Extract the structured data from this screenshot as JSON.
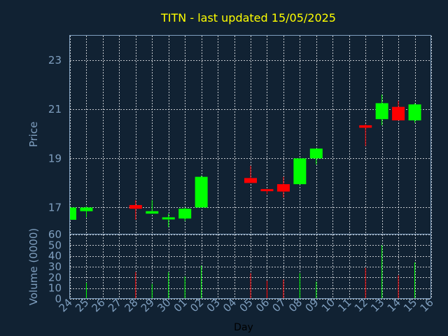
{
  "chart_data": {
    "type": "candlestick",
    "title": "TITN - last updated 15/05/2025",
    "ylabel": "Price",
    "volume_label": "Volume (0000)",
    "xlabel": "Day",
    "x_ticks": [
      "24",
      "25",
      "26",
      "27",
      "28",
      "29",
      "30",
      "01",
      "02",
      "03",
      "04",
      "05",
      "06",
      "07",
      "08",
      "09",
      "10",
      "11",
      "12",
      "13",
      "14",
      "15",
      "16"
    ],
    "price_ticks": [
      17,
      19,
      21,
      23
    ],
    "price_ylim": [
      15.9,
      24.0
    ],
    "volume_ticks": [
      0,
      10,
      20,
      30,
      40,
      50,
      60
    ],
    "volume_ylim": [
      0,
      60
    ],
    "colors": {
      "up": "#00ff00",
      "down": "#ff0000",
      "background": "#112233",
      "axes": "#7f9fbf",
      "title": "#ffff00"
    },
    "candles": [
      {
        "day": "24",
        "open": 16.5,
        "close": 17.0,
        "high": 17.0,
        "low": 16.5,
        "volume": 0
      },
      {
        "day": "25",
        "open": 16.85,
        "close": 17.0,
        "high": 17.05,
        "low": 16.6,
        "volume": 15
      },
      {
        "day": "28",
        "open": 17.1,
        "close": 16.95,
        "high": 17.3,
        "low": 16.5,
        "volume": 25
      },
      {
        "day": "29",
        "open": 16.75,
        "close": 16.85,
        "high": 17.3,
        "low": 16.75,
        "volume": 14
      },
      {
        "day": "30",
        "open": 16.6,
        "close": 16.6,
        "high": 16.75,
        "low": 16.2,
        "volume": 25
      },
      {
        "day": "01",
        "open": 16.55,
        "close": 16.95,
        "high": 17.0,
        "low": 16.45,
        "volume": 21
      },
      {
        "day": "02",
        "open": 17.0,
        "close": 18.25,
        "high": 18.3,
        "low": 17.0,
        "volume": 31
      },
      {
        "day": "05",
        "open": 18.2,
        "close": 18.0,
        "high": 18.7,
        "low": 18.0,
        "volume": 24
      },
      {
        "day": "06",
        "open": 17.75,
        "close": 17.7,
        "high": 17.75,
        "low": 17.55,
        "volume": 17
      },
      {
        "day": "07",
        "open": 17.95,
        "close": 17.65,
        "high": 18.25,
        "low": 17.4,
        "volume": 18
      },
      {
        "day": "08",
        "open": 17.95,
        "close": 19.0,
        "high": 19.0,
        "low": 17.95,
        "volume": 24
      },
      {
        "day": "09",
        "open": 19.0,
        "close": 19.4,
        "high": 19.4,
        "low": 18.75,
        "volume": 16
      },
      {
        "day": "12",
        "open": 20.35,
        "close": 20.25,
        "high": 20.4,
        "low": 19.5,
        "volume": 29
      },
      {
        "day": "13",
        "open": 20.6,
        "close": 21.25,
        "high": 21.6,
        "low": 20.35,
        "volume": 50
      },
      {
        "day": "14",
        "open": 21.1,
        "close": 20.55,
        "high": 21.35,
        "low": 20.55,
        "volume": 22
      },
      {
        "day": "15",
        "open": 20.55,
        "close": 21.2,
        "high": 21.25,
        "low": 20.45,
        "volume": 34
      }
    ]
  }
}
